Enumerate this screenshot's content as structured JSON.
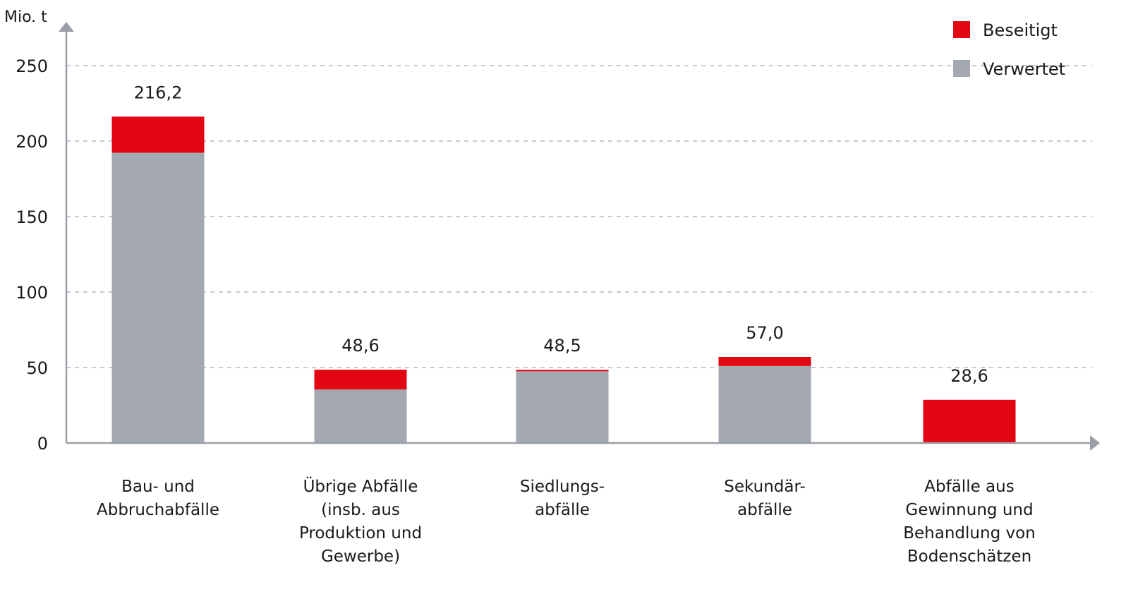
{
  "chart_data": {
    "type": "bar",
    "stacked": true,
    "unit_label": "Mio. t",
    "title": "",
    "xlabel": "",
    "ylabel": "Mio. t",
    "ylim": [
      0,
      250
    ],
    "yticks": [
      0,
      50,
      100,
      150,
      200,
      250
    ],
    "grid": "horizontal dashed",
    "legend_position": "top-right",
    "categories": [
      "Bau- und\nAbbruchabfälle",
      "Übrige Abfälle\n(insb. aus\nProduktion und\nGewerbe)",
      "Siedlungs-\nabfälle",
      "Sekundär-\nabfälle",
      "Abfälle aus\nGewinnung und\nBehandlung von\nBodenschätzen"
    ],
    "totals": [
      "216,2",
      "48,6",
      "48,5",
      "57,0",
      "28,6"
    ],
    "series": [
      {
        "name": "Verwertet",
        "color": "#a3a8b1",
        "values": [
          192.3,
          35.5,
          47.5,
          51.0,
          0.0
        ]
      },
      {
        "name": "Beseitigt",
        "color": "#e30613",
        "values": [
          23.9,
          13.1,
          1.0,
          6.0,
          28.6
        ]
      }
    ],
    "legend": [
      {
        "name": "Beseitigt",
        "color": "#e30613"
      },
      {
        "name": "Verwertet",
        "color": "#a3a8b1"
      }
    ]
  }
}
